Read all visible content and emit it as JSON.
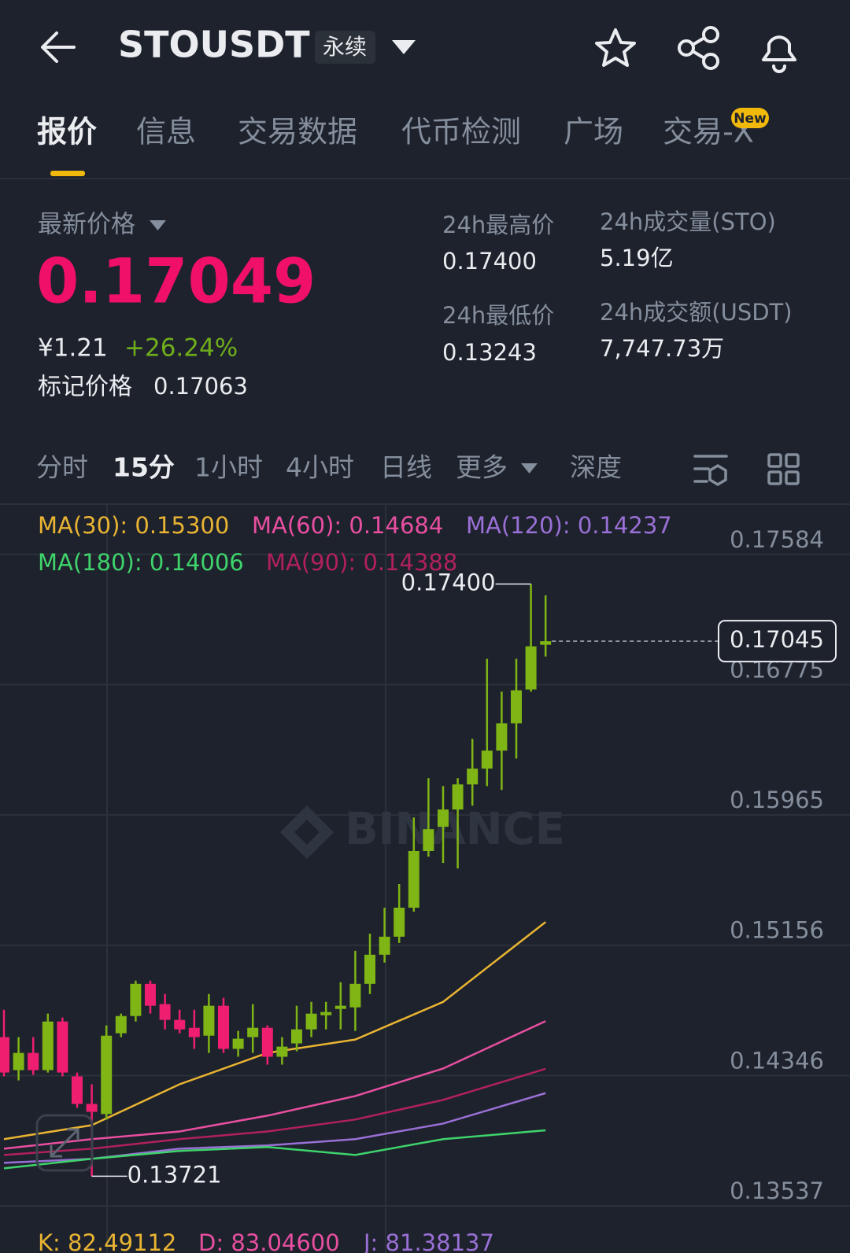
{
  "header": {
    "symbol": "STOUSDT",
    "badge": "永续"
  },
  "tabs": [
    "报价",
    "信息",
    "交易数据",
    "代币检测",
    "广场",
    "交易-X"
  ],
  "new_badge": "New",
  "price": {
    "label": "最新价格",
    "last": "0.17049",
    "cny": "¥1.21",
    "change": "+26.24%",
    "mark_label": "标记价格",
    "mark": "0.17063"
  },
  "stats": [
    {
      "label": "24h最高价",
      "value": "0.17400"
    },
    {
      "label": "24h成交量(STO)",
      "value": "5.19亿"
    },
    {
      "label": "24h最低价",
      "value": "0.13243"
    },
    {
      "label": "24h成交额(USDT)",
      "value": "7,747.73万"
    }
  ],
  "intervals": [
    "分时",
    "15分",
    "1小时",
    "4小时",
    "日线",
    "更多",
    "深度"
  ],
  "chart_data": {
    "type": "candlestick",
    "watermark": "BINANCE",
    "up_color": "#7fb514",
    "down_color": "#ef1e6e",
    "open": [
      0.14585,
      0.1438,
      0.14487,
      0.1438,
      0.14682,
      0.14341,
      0.1417,
      0.14107,
      0.14609,
      0.14716,
      0.14916,
      0.1479,
      0.14692,
      0.14643,
      0.14594,
      0.1478,
      0.14512,
      0.14585,
      0.14643,
      0.14463,
      0.14546,
      0.14633,
      0.14721,
      0.1476,
      0.1477,
      0.14916,
      0.15097,
      0.15209,
      0.15389,
      0.15741,
      0.15892,
      0.15999,
      0.16155,
      0.16253,
      0.16365,
      0.16535,
      0.16745,
      0.17023
    ],
    "high": [
      0.14755,
      0.14585,
      0.14585,
      0.14731,
      0.14707,
      0.14365,
      0.14292,
      0.14658,
      0.14731,
      0.14936,
      0.14936,
      0.14853,
      0.14755,
      0.14755,
      0.14853,
      0.14829,
      0.14624,
      0.1479,
      0.14658,
      0.14585,
      0.1478,
      0.14804,
      0.14804,
      0.14926,
      0.15121,
      0.15228,
      0.15389,
      0.15536,
      0.1595,
      0.16194,
      0.16145,
      0.16194,
      0.16438,
      0.16935,
      0.16731,
      0.16935,
      0.174,
      0.1733
    ],
    "low": [
      0.14341,
      0.14316,
      0.14351,
      0.14365,
      0.14341,
      0.14146,
      0.13721,
      0.14073,
      0.14585,
      0.14682,
      0.14731,
      0.14633,
      0.14609,
      0.14512,
      0.14487,
      0.14487,
      0.14463,
      0.14487,
      0.14414,
      0.14414,
      0.14497,
      0.14585,
      0.14633,
      0.14633,
      0.14624,
      0.14853,
      0.15048,
      0.1517,
      0.15365,
      0.15706,
      0.15667,
      0.15633,
      0.16023,
      0.16145,
      0.16121,
      0.16316,
      0.16731,
      0.1695
    ],
    "close": [
      0.14365,
      0.14487,
      0.1438,
      0.14682,
      0.14365,
      0.1417,
      0.14121,
      0.14594,
      0.14716,
      0.14916,
      0.1478,
      0.14692,
      0.14633,
      0.14585,
      0.1478,
      0.14512,
      0.14575,
      0.14643,
      0.14463,
      0.14526,
      0.14633,
      0.14731,
      0.14741,
      0.1478,
      0.14916,
      0.15097,
      0.15209,
      0.15389,
      0.15741,
      0.15877,
      0.15999,
      0.16155,
      0.16253,
      0.16365,
      0.16535,
      0.1674,
      0.17013,
      0.17045
    ],
    "max_label": "0.17400",
    "min_label": "0.13721",
    "last_label": "0.17045",
    "series": [
      {
        "name": "MA(30): 0.15300",
        "color": "#e9b432",
        "x": [
          0,
          6,
          12,
          18,
          24,
          30,
          37
        ],
        "values": [
          0.13951,
          0.14038,
          0.14292,
          0.14487,
          0.1457,
          0.14804,
          0.153
        ]
      },
      {
        "name": "MA(60): 0.14684",
        "color": "#e84fa0",
        "x": [
          0,
          6,
          12,
          18,
          24,
          30,
          37
        ],
        "values": [
          0.13892,
          0.13951,
          0.13999,
          0.14097,
          0.14219,
          0.1439,
          0.14684
        ]
      },
      {
        "name": "MA(120): 0.14237",
        "color": "#9a70d6",
        "x": [
          0,
          6,
          12,
          18,
          24,
          30,
          37
        ],
        "values": [
          0.13804,
          0.13829,
          0.13892,
          0.13912,
          0.13951,
          0.14048,
          0.14237
        ]
      },
      {
        "name": "MA(180): 0.14006",
        "color": "#3fd36b",
        "x": [
          0,
          6,
          12,
          18,
          24,
          30,
          37
        ],
        "values": [
          0.1377,
          0.13829,
          0.13878,
          0.13902,
          0.13853,
          0.13951,
          0.14006
        ]
      },
      {
        "name": "MA(90): 0.14388",
        "color": "#b0215a",
        "x": [
          0,
          6,
          12,
          18,
          24,
          30,
          37
        ],
        "values": [
          0.13853,
          0.13892,
          0.13951,
          0.13999,
          0.14073,
          0.14195,
          0.14388
        ]
      }
    ],
    "ylim": [
      0.13537,
      0.17901
    ],
    "yticks": [
      0.13537,
      0.14346,
      0.15156,
      0.15965,
      0.16775,
      0.17584
    ],
    "grid": true
  },
  "indicator": [
    "K: 82.49112",
    "D: 83.04600",
    "J: 81.38137"
  ]
}
